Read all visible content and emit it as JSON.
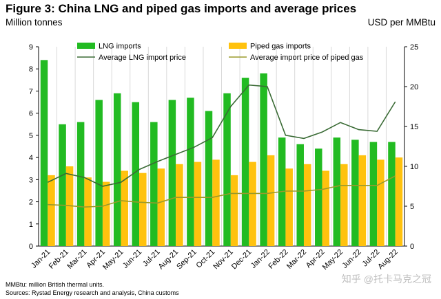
{
  "header": {
    "title": "Figure 3: China LNG and piped gas imports and average prices",
    "left_unit": "Million tonnes",
    "right_unit": "USD per MMBtu"
  },
  "footnotes": {
    "line1": "MMBtu: million British thermal units.",
    "line2": "Sources: Rystad Energy research and analysis, China customs"
  },
  "watermark": "知乎 @托卡马克之冠",
  "colors": {
    "lng_bar": "#22bb22",
    "piped_bar": "#ffc20e",
    "lng_price_line": "#3a6b35",
    "piped_price_line": "#9a9a2a",
    "grid": "#d9d9d9"
  },
  "chart_data": {
    "type": "bar",
    "categories": [
      "Jan-21",
      "Feb-21",
      "Mar-21",
      "Apr-21",
      "May-21",
      "Jun-21",
      "Jul-21",
      "Aug-21",
      "Sep-21",
      "Oct-21",
      "Nov-21",
      "Dec-21",
      "Jan-22",
      "Feb-22",
      "Mar-22",
      "Apr-22",
      "May-22",
      "Jun-22",
      "Jul-22",
      "Aug-22"
    ],
    "series": [
      {
        "name": "LNG imports",
        "kind": "bar",
        "axis": "left",
        "values": [
          8.4,
          5.5,
          5.6,
          6.6,
          6.9,
          6.5,
          5.6,
          6.6,
          6.7,
          6.1,
          6.9,
          7.6,
          7.8,
          4.9,
          4.6,
          4.4,
          4.9,
          4.8,
          4.7,
          4.7
        ]
      },
      {
        "name": "Piped gas imports",
        "kind": "bar",
        "axis": "left",
        "values": [
          3.2,
          3.6,
          3.1,
          2.9,
          3.4,
          3.3,
          3.5,
          3.7,
          3.8,
          3.9,
          3.2,
          3.8,
          4.1,
          3.5,
          3.7,
          3.4,
          3.7,
          4.1,
          3.9,
          4.0
        ]
      },
      {
        "name": "Average LNG import price",
        "kind": "line",
        "axis": "right",
        "values": [
          8.0,
          9.1,
          8.6,
          7.5,
          8.0,
          9.6,
          10.6,
          11.5,
          12.4,
          13.6,
          17.5,
          20.2,
          20.0,
          13.9,
          13.5,
          14.3,
          15.5,
          14.6,
          14.4,
          18.1
        ]
      },
      {
        "name": "Average import price of piped gas",
        "kind": "line",
        "axis": "right",
        "values": [
          5.2,
          5.1,
          4.9,
          5.0,
          5.7,
          5.5,
          5.4,
          6.1,
          6.1,
          6.1,
          6.6,
          6.6,
          6.6,
          6.9,
          6.9,
          7.1,
          7.6,
          7.6,
          7.6,
          8.8
        ]
      }
    ],
    "y_left": {
      "label": "Million tonnes",
      "ylim": [
        0,
        9
      ],
      "ticks": [
        0,
        1,
        2,
        3,
        4,
        5,
        6,
        7,
        8,
        9
      ]
    },
    "y_right": {
      "label": "USD per MMBtu",
      "ylim": [
        0,
        25
      ],
      "ticks": [
        0,
        5,
        10,
        15,
        20,
        25
      ]
    },
    "grid": "vertical",
    "legend": "top"
  }
}
